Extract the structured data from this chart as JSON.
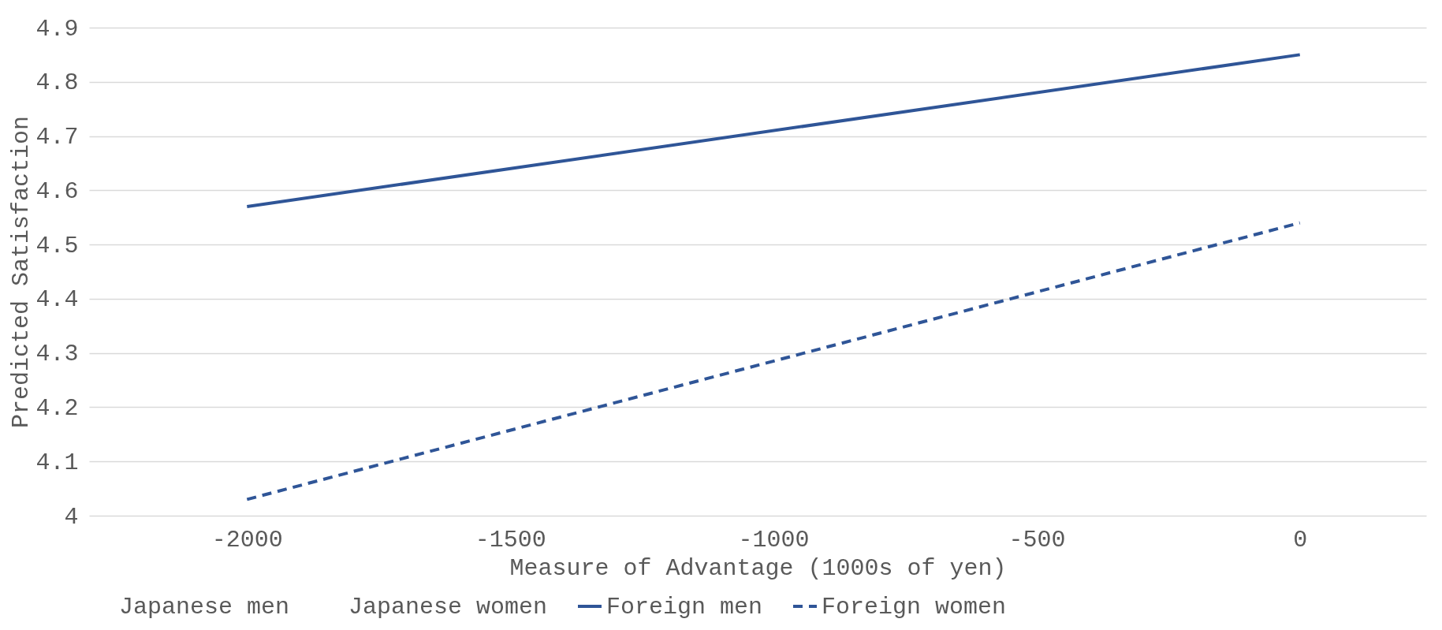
{
  "chart_data": {
    "type": "line",
    "xlabel": "Measure of Advantage (1000s of yen)",
    "ylabel": "Predicted Satisfaction",
    "x": [
      -2000,
      0
    ],
    "series": [
      {
        "name": "Japanese men",
        "values": [
          null,
          null
        ]
      },
      {
        "name": "Japanese women",
        "values": [
          null,
          null
        ]
      },
      {
        "name": "Foreign men",
        "color": "#2f5597",
        "values": [
          4.57,
          4.85
        ],
        "line_style": "solid"
      },
      {
        "name": "Foreign women",
        "color": "#2f5597",
        "values": [
          4.03,
          4.54
        ],
        "line_style": "dashed"
      }
    ],
    "xlim": [
      -2300,
      240
    ],
    "xticks": [
      -2000,
      -1500,
      -1000,
      -500,
      0
    ],
    "ylim": [
      4,
      4.9
    ],
    "yticks": [
      4,
      4.1,
      4.2,
      4.3,
      4.4,
      4.5,
      4.6,
      4.7,
      4.8,
      4.9
    ],
    "grid": "y",
    "legend": "bottom",
    "marker": "none"
  }
}
